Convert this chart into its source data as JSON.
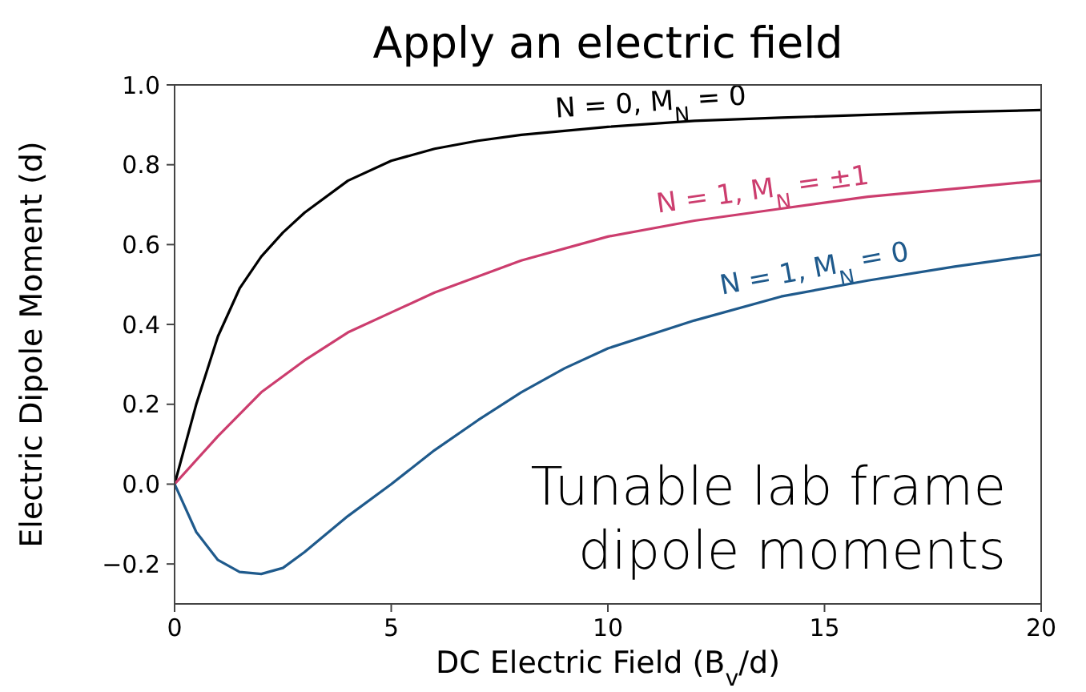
{
  "chart_data": {
    "type": "line",
    "title": "Apply an electric field",
    "xlabel": "DC Electric Field (B$_{v}$/d)",
    "ylabel": "Electric Dipole Moment (d)",
    "xlim": [
      0,
      20
    ],
    "ylim": [
      -0.3,
      1.0
    ],
    "xticks": [
      0,
      5,
      10,
      15,
      20
    ],
    "yticks": [
      {
        "value": -0.2,
        "label": "−0.2"
      },
      {
        "value": 0,
        "label": "0.0"
      },
      {
        "value": 0.2,
        "label": "0.2"
      },
      {
        "value": 0.4,
        "label": "0.4"
      },
      {
        "value": 0.6,
        "label": "0.6"
      },
      {
        "value": 0.8,
        "label": "0.8"
      },
      {
        "value": 1.0,
        "label": "1.0"
      }
    ],
    "grid": false,
    "marker": "none",
    "line_style": "solid",
    "series": [
      {
        "name": "N = 0, M$_{N}$ = 0",
        "color": "#000000",
        "x": [
          0,
          0.25,
          0.5,
          1,
          1.5,
          2,
          2.5,
          3,
          4,
          5,
          6,
          7,
          8,
          10,
          12,
          14,
          16,
          18,
          20
        ],
        "values": [
          0,
          0.1,
          0.2,
          0.37,
          0.49,
          0.57,
          0.63,
          0.68,
          0.76,
          0.81,
          0.84,
          0.86,
          0.875,
          0.895,
          0.91,
          0.918,
          0.925,
          0.932,
          0.937
        ]
      },
      {
        "name": "N = 1, M$_{N}$ = ±1",
        "color": "#cc3d6e",
        "x": [
          0,
          1,
          2,
          3,
          4,
          5,
          6,
          7,
          8,
          10,
          12,
          14,
          16,
          18,
          20
        ],
        "values": [
          0,
          0.12,
          0.23,
          0.31,
          0.38,
          0.43,
          0.48,
          0.52,
          0.56,
          0.62,
          0.66,
          0.69,
          0.72,
          0.74,
          0.76
        ]
      },
      {
        "name": "N = 1, M$_{N}$ = 0",
        "color": "#1f5a8c",
        "x": [
          0,
          0.5,
          1,
          1.5,
          2,
          2.5,
          3,
          4,
          5,
          6,
          7,
          8,
          9,
          10,
          12,
          14,
          16,
          18,
          20
        ],
        "values": [
          0,
          -0.12,
          -0.19,
          -0.22,
          -0.225,
          -0.21,
          -0.17,
          -0.08,
          0,
          0.085,
          0.16,
          0.23,
          0.29,
          0.34,
          0.41,
          0.47,
          0.51,
          0.545,
          0.575
        ]
      }
    ],
    "annotations": [
      "Tunable lab frame\ndipole moments"
    ]
  }
}
